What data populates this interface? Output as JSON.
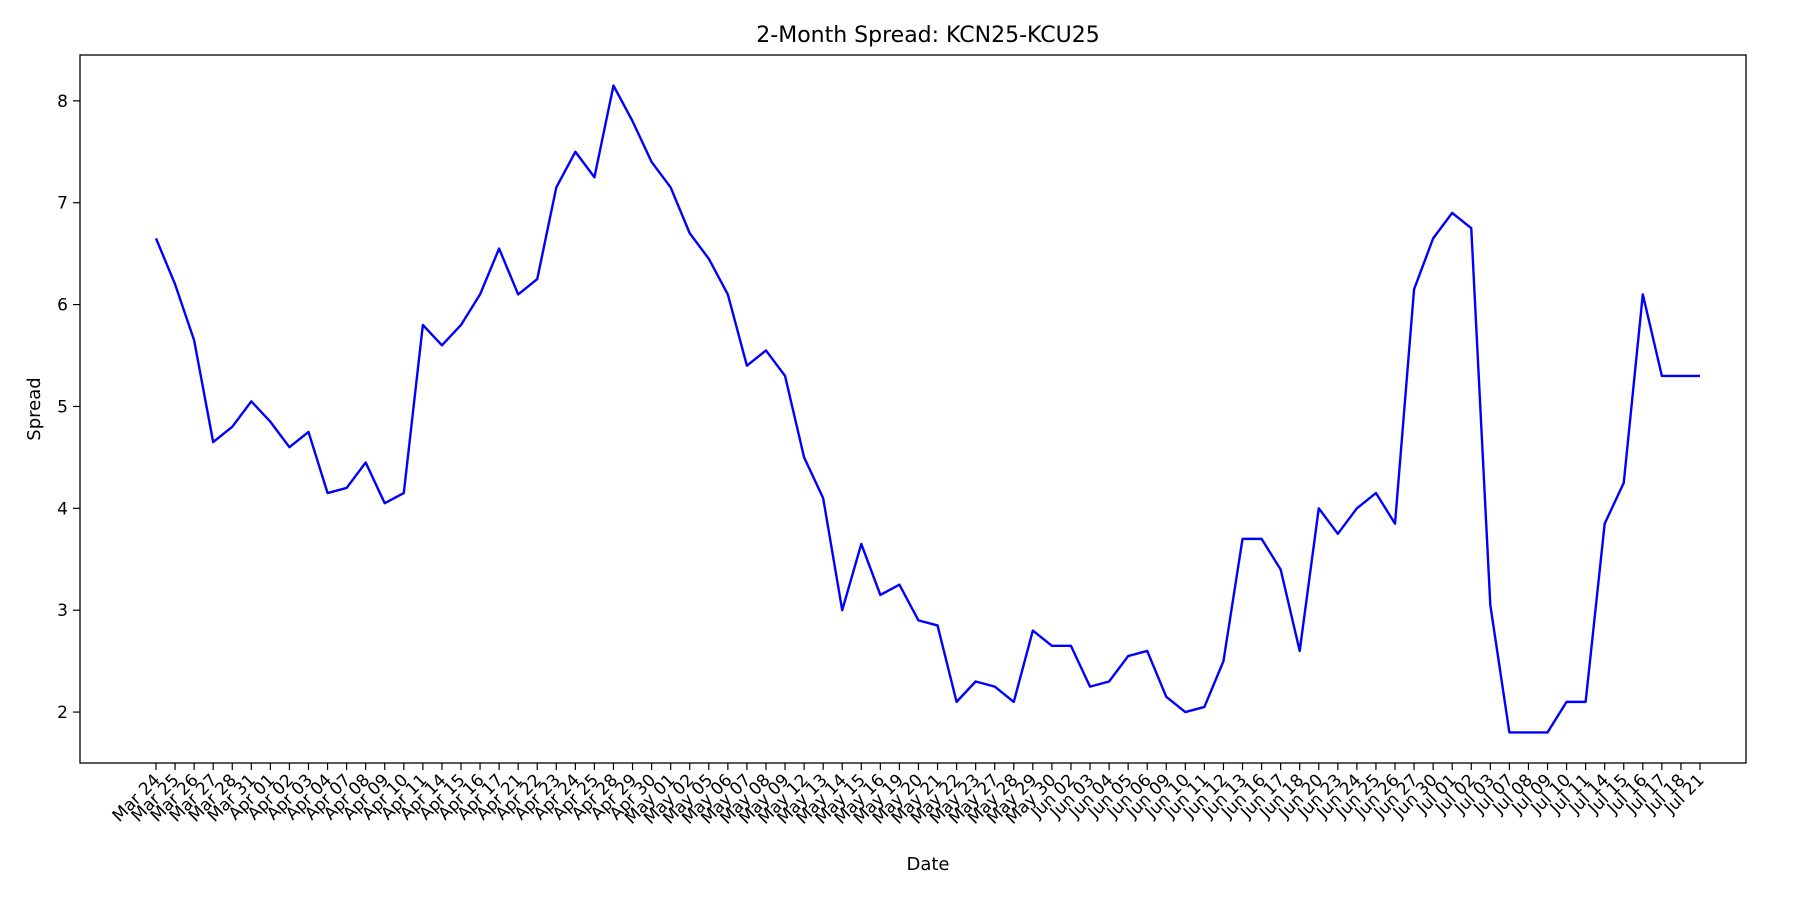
{
  "chart_data": {
    "type": "line",
    "title": "2-Month Spread: KCN25-KCU25",
    "xlabel": "Date",
    "ylabel": "Spread",
    "ylim": [
      1.5,
      8.45
    ],
    "yticks": [
      2,
      3,
      4,
      5,
      6,
      7,
      8
    ],
    "grid": false,
    "legend": "none",
    "line_color": "#0000ff",
    "categories": [
      "Mar 24",
      "Mar 25",
      "Mar 26",
      "Mar 27",
      "Mar 28",
      "Mar 31",
      "Apr 01",
      "Apr 02",
      "Apr 03",
      "Apr 04",
      "Apr 07",
      "Apr 08",
      "Apr 09",
      "Apr 10",
      "Apr 11",
      "Apr 14",
      "Apr 15",
      "Apr 16",
      "Apr 17",
      "Apr 21",
      "Apr 22",
      "Apr 23",
      "Apr 24",
      "Apr 25",
      "Apr 28",
      "Apr 29",
      "Apr 30",
      "May 01",
      "May 02",
      "May 05",
      "May 06",
      "May 07",
      "May 08",
      "May 09",
      "May 12",
      "May 13",
      "May 14",
      "May 15",
      "May 16",
      "May 19",
      "May 20",
      "May 21",
      "May 22",
      "May 23",
      "May 27",
      "May 28",
      "May 29",
      "May 30",
      "Jun 02",
      "Jun 03",
      "Jun 04",
      "Jun 05",
      "Jun 06",
      "Jun 09",
      "Jun 10",
      "Jun 11",
      "Jun 12",
      "Jun 13",
      "Jun 16",
      "Jun 17",
      "Jun 18",
      "Jun 20",
      "Jun 23",
      "Jun 24",
      "Jun 25",
      "Jun 26",
      "Jun 27",
      "Jun 30",
      "Jul 01",
      "Jul 02",
      "Jul 03",
      "Jul 07",
      "Jul 08",
      "Jul 09",
      "Jul 10",
      "Jul 11",
      "Jul 14",
      "Jul 15",
      "Jul 16",
      "Jul 17",
      "Jul 18",
      "Jul 21"
    ],
    "series": [
      {
        "values": [
          6.65,
          6.2,
          5.65,
          4.65,
          4.8,
          5.05,
          4.85,
          4.6,
          4.75,
          4.15,
          4.2,
          4.45,
          4.05,
          4.15,
          5.8,
          5.6,
          5.8,
          6.1,
          6.55,
          6.1,
          6.25,
          7.15,
          7.5,
          7.25,
          8.15,
          7.8,
          7.4,
          7.15,
          6.7,
          6.45,
          6.1,
          5.4,
          5.55,
          5.3,
          4.5,
          4.1,
          3.0,
          3.65,
          3.15,
          3.25,
          2.9,
          2.85,
          2.1,
          2.3,
          2.25,
          2.1,
          2.8,
          2.65,
          2.65,
          2.25,
          2.3,
          2.55,
          2.6,
          2.15,
          2.0,
          2.05,
          2.5,
          3.7,
          3.7,
          3.4,
          2.6,
          4.0,
          3.75,
          4.0,
          4.15,
          3.85,
          6.15,
          6.65,
          6.9,
          6.75,
          3.05,
          1.8,
          1.8,
          1.8,
          2.1,
          2.1,
          3.85,
          4.25,
          6.1,
          5.3,
          5.3,
          5.3
        ]
      }
    ]
  }
}
